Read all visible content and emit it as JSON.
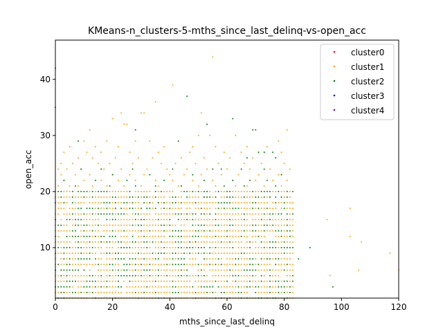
{
  "chart_data": {
    "type": "scatter",
    "title": "KMeans-n_clusters-5-mths_since_last_delinq-vs-open_acc",
    "xlabel": "mths_since_last_delinq",
    "ylabel": "open_acc",
    "xlim": [
      0,
      120
    ],
    "ylim": [
      1,
      47
    ],
    "xticks": [
      0,
      20,
      40,
      60,
      80,
      100,
      120
    ],
    "yticks": [
      10,
      20,
      30,
      40
    ],
    "grid": false,
    "legend_position": "top-right",
    "dense_region": {
      "x_range": [
        0,
        83
      ],
      "y_range": [
        1,
        20
      ],
      "description": "near-complete lattice of integer points, mixed cluster1 and cluster2"
    },
    "series": [
      {
        "name": "cluster0",
        "color": "#ff0000",
        "points": []
      },
      {
        "name": "cluster1",
        "color": "#ffa500",
        "points": [
          [
            55,
            44
          ],
          [
            41,
            39
          ],
          [
            35,
            36
          ],
          [
            31,
            34
          ],
          [
            23,
            34
          ],
          [
            20,
            33
          ],
          [
            25,
            32
          ],
          [
            24,
            32
          ],
          [
            12,
            31
          ],
          [
            30,
            34
          ],
          [
            51,
            34
          ],
          [
            81,
            31
          ],
          [
            50,
            30
          ],
          [
            54,
            30
          ],
          [
            63,
            30
          ],
          [
            10,
            29
          ],
          [
            18,
            29
          ],
          [
            28,
            29
          ],
          [
            33,
            29
          ],
          [
            78,
            29
          ],
          [
            5,
            28
          ],
          [
            14,
            28
          ],
          [
            22,
            28
          ],
          [
            38,
            28
          ],
          [
            48,
            28
          ],
          [
            56,
            28
          ],
          [
            67,
            28
          ],
          [
            74,
            28
          ],
          [
            3,
            27
          ],
          [
            11,
            27
          ],
          [
            16,
            27
          ],
          [
            26,
            27
          ],
          [
            36,
            27
          ],
          [
            47,
            27
          ],
          [
            59,
            27
          ],
          [
            65,
            27
          ],
          [
            79,
            27
          ],
          [
            8,
            26
          ],
          [
            13,
            26
          ],
          [
            21,
            26
          ],
          [
            29,
            26
          ],
          [
            34,
            26
          ],
          [
            44,
            26
          ],
          [
            52,
            26
          ],
          [
            61,
            26
          ],
          [
            69,
            26
          ],
          [
            77,
            26
          ],
          [
            2,
            25
          ],
          [
            6,
            25
          ],
          [
            15,
            25
          ],
          [
            19,
            25
          ],
          [
            27,
            25
          ],
          [
            37,
            25
          ],
          [
            42,
            25
          ],
          [
            49,
            25
          ],
          [
            57,
            25
          ],
          [
            66,
            25
          ],
          [
            72,
            25
          ],
          [
            80,
            25
          ],
          [
            1,
            24
          ],
          [
            4,
            24
          ],
          [
            9,
            24
          ],
          [
            17,
            24
          ],
          [
            23,
            24
          ],
          [
            32,
            24
          ],
          [
            39,
            24
          ],
          [
            46,
            24
          ],
          [
            53,
            24
          ],
          [
            60,
            24
          ],
          [
            68,
            24
          ],
          [
            75,
            24
          ],
          [
            82,
            24
          ],
          [
            2,
            23
          ],
          [
            7,
            23
          ],
          [
            12,
            23
          ],
          [
            20,
            23
          ],
          [
            26,
            23
          ],
          [
            31,
            23
          ],
          [
            40,
            23
          ],
          [
            45,
            23
          ],
          [
            51,
            23
          ],
          [
            58,
            23
          ],
          [
            64,
            23
          ],
          [
            71,
            23
          ],
          [
            78,
            23
          ],
          [
            3,
            22
          ],
          [
            10,
            22
          ],
          [
            16,
            22
          ],
          [
            22,
            22
          ],
          [
            28,
            22
          ],
          [
            35,
            22
          ],
          [
            41,
            22
          ],
          [
            48,
            22
          ],
          [
            55,
            22
          ],
          [
            62,
            22
          ],
          [
            70,
            22
          ],
          [
            76,
            22
          ],
          [
            81,
            22
          ],
          [
            1,
            21
          ],
          [
            5,
            21
          ],
          [
            8,
            21
          ],
          [
            13,
            21
          ],
          [
            18,
            21
          ],
          [
            24,
            21
          ],
          [
            30,
            21
          ],
          [
            36,
            21
          ],
          [
            43,
            21
          ],
          [
            50,
            21
          ],
          [
            56,
            21
          ],
          [
            63,
            21
          ],
          [
            67,
            21
          ],
          [
            73,
            21
          ],
          [
            79,
            21
          ],
          [
            103,
            17
          ],
          [
            95,
            15
          ],
          [
            103,
            12
          ],
          [
            107,
            11
          ],
          [
            117,
            9
          ],
          [
            106,
            6
          ],
          [
            96,
            5
          ],
          [
            120,
            6
          ]
        ]
      },
      {
        "name": "cluster2",
        "color": "#008000",
        "points": [
          [
            46,
            37
          ],
          [
            62,
            33
          ],
          [
            53,
            32
          ],
          [
            70,
            31
          ],
          [
            69,
            31
          ],
          [
            28,
            31
          ],
          [
            43,
            29
          ],
          [
            8,
            29
          ],
          [
            73,
            27
          ],
          [
            76,
            27
          ],
          [
            67,
            26
          ],
          [
            77,
            26
          ],
          [
            71,
            27
          ],
          [
            16,
            24
          ],
          [
            41,
            24
          ],
          [
            58,
            24
          ],
          [
            73,
            24
          ],
          [
            9,
            24
          ],
          [
            27,
            24
          ],
          [
            55,
            24
          ],
          [
            65,
            24
          ],
          [
            79,
            23
          ],
          [
            48,
            23
          ],
          [
            33,
            23
          ],
          [
            20,
            23
          ],
          [
            3,
            22
          ],
          [
            14,
            22
          ],
          [
            38,
            22
          ],
          [
            62,
            22
          ],
          [
            74,
            22
          ],
          [
            25,
            22
          ],
          [
            52,
            22
          ],
          [
            68,
            22
          ],
          [
            7,
            21
          ],
          [
            19,
            21
          ],
          [
            35,
            21
          ],
          [
            44,
            21
          ],
          [
            59,
            21
          ],
          [
            66,
            21
          ],
          [
            77,
            21
          ],
          [
            28,
            21
          ],
          [
            89,
            10
          ],
          [
            85,
            8
          ],
          [
            97,
            3
          ],
          [
            0,
            42
          ],
          [
            0,
            35
          ]
        ]
      },
      {
        "name": "cluster3",
        "color": "#0000ff",
        "points": []
      },
      {
        "name": "cluster4",
        "color": "#800080",
        "points": []
      }
    ]
  }
}
